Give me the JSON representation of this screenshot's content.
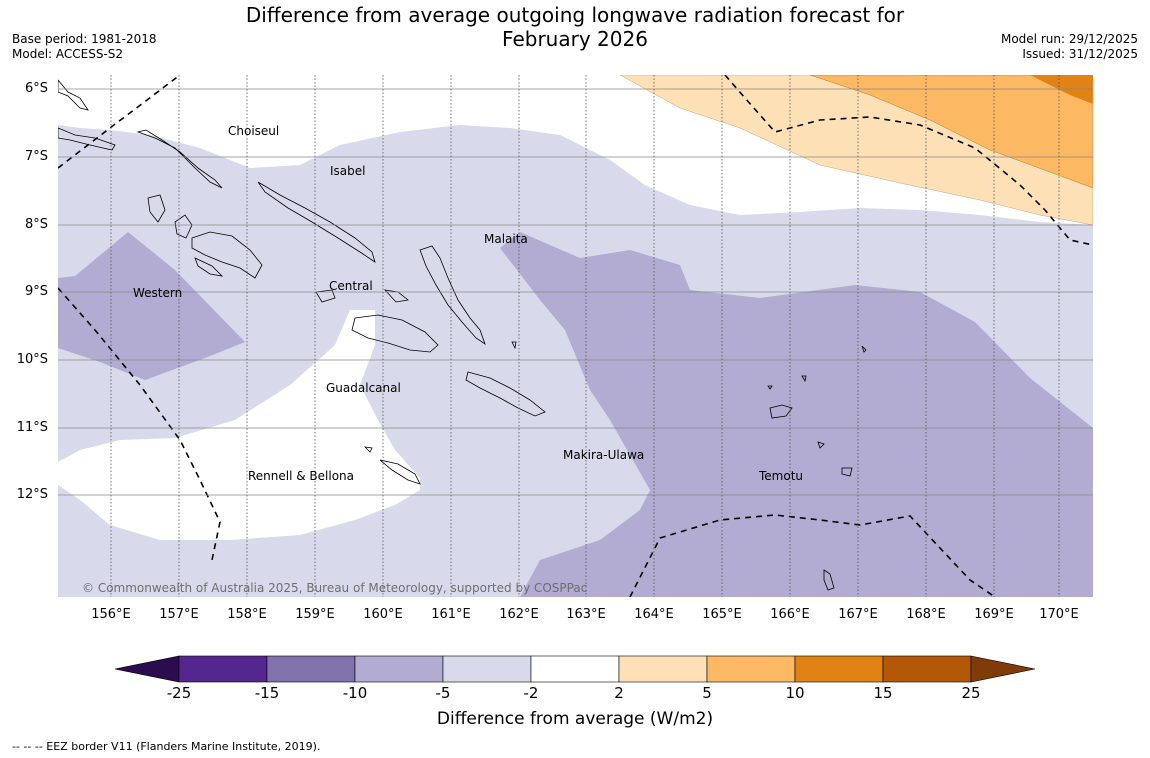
{
  "header": {
    "title_line1": "Difference from average outgoing longwave radiation forecast for",
    "title_line2": "February 2026",
    "base_period": "Base period: 1981-2018",
    "model": "Model: ACCESS-S2",
    "model_run": "Model run: 29/12/2025",
    "issued": "Issued: 31/12/2025"
  },
  "map": {
    "lat_labels": [
      "6°S",
      "7°S",
      "8°S",
      "9°S",
      "10°S",
      "11°S",
      "12°S"
    ],
    "lon_labels": [
      "156°E",
      "157°E",
      "158°E",
      "159°E",
      "160°E",
      "161°E",
      "162°E",
      "163°E",
      "164°E",
      "165°E",
      "166°E",
      "167°E",
      "168°E",
      "169°E",
      "170°E"
    ],
    "regions": [
      "Choiseul",
      "Isabel",
      "Malaita",
      "Western",
      "Central",
      "Guadalcanal",
      "Makira-Ulawa",
      "Rennell & Bellona",
      "Temotu"
    ],
    "copyright": "© Commonwealth of Australia 2025, Bureau of Meteorology, supported by COSPPac"
  },
  "colorbar": {
    "ticks": [
      "-25",
      "-15",
      "-10",
      "-5",
      "-2",
      "2",
      "5",
      "10",
      "15",
      "25"
    ],
    "colors": [
      "#2d0b4f",
      "#54278f",
      "#8073ac",
      "#b2abd2",
      "#d8daeb",
      "#ffffff",
      "#fee0b6",
      "#fdb863",
      "#e08214",
      "#b35806",
      "#7f3b08"
    ],
    "label": "Difference from average (W/m2)"
  },
  "footer": {
    "legend": "--  --  -- EEZ border V11 (Flanders Marine Institute, 2019)."
  }
}
